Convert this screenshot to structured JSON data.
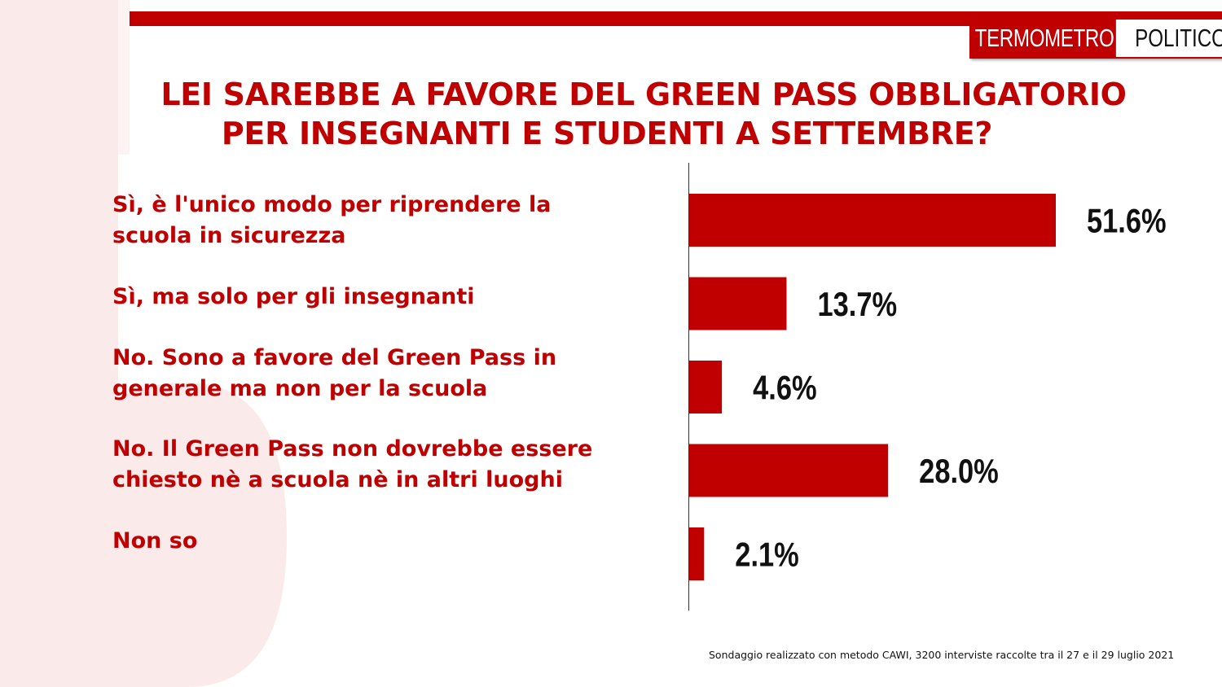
{
  "header": {
    "logo_part1": "TERMOMETRO",
    "logo_part2": "POLITICO",
    "title_line1": "LEI SAREBBE A FAVORE DEL GREEN PASS OBBLIGATORIO",
    "title_line2": "PER INSEGNANTI E STUDENTI A SETTEMBRE?"
  },
  "chart_data": {
    "type": "bar",
    "orientation": "horizontal",
    "categories": [
      "Sì, è l'unico modo per riprendere la scuola in sicurezza",
      "Sì, ma solo per gli insegnanti",
      "No. Sono a favore del Green Pass in generale ma non per la scuola",
      "No. Il Green Pass non dovrebbe essere chiesto nè a scuola nè in altri luoghi",
      "Non so"
    ],
    "category_lines": [
      [
        "Sì, è l'unico modo per riprendere la",
        "scuola in sicurezza"
      ],
      [
        "Sì, ma solo per gli insegnanti"
      ],
      [
        "No. Sono a favore del Green Pass in",
        "generale ma non per la scuola"
      ],
      [
        "No. Il Green Pass non dovrebbe essere",
        "chiesto nè a scuola nè in altri luoghi"
      ],
      [
        "Non so"
      ]
    ],
    "values": [
      51.6,
      13.7,
      4.6,
      28.0,
      2.1
    ],
    "value_labels": [
      "51.6%",
      "13.7%",
      "4.6%",
      "28.0%",
      "2.1%"
    ],
    "unit": "%",
    "bar_color": "#c00000",
    "label_color": "#c00000",
    "value_label_color": "#111111",
    "grid": false,
    "legend": "none"
  },
  "footnote": "Sondaggio realizzato con metodo CAWI, 3200 interviste raccolte tra il 27 e il 29  luglio 2021"
}
